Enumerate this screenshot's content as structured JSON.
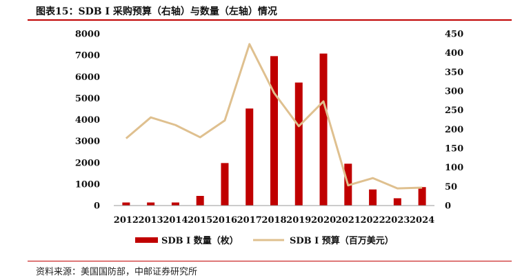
{
  "title": "图表15：SDB I 采购预算（右轴）与数量（左轴）情况",
  "source": "资料来源：美国国防部，中邮证券研究所",
  "colors": {
    "bar": "#c00000",
    "line": "#dfc08f",
    "rule": "#c00000"
  },
  "chart_data": {
    "type": "bar",
    "categories": [
      "2012",
      "2013",
      "2014",
      "2015",
      "2016",
      "2017",
      "2018",
      "2019",
      "2020",
      "2021",
      "2022",
      "2023",
      "2024"
    ],
    "series": [
      {
        "name": "SDB I 数量（枚）",
        "type": "bar",
        "axis": "left",
        "values": [
          144,
          144,
          144,
          450,
          1980,
          4520,
          6960,
          5730,
          7080,
          1950,
          750,
          340,
          860
        ]
      },
      {
        "name": "SDB I 预算（百万美元）",
        "type": "line",
        "axis": "right",
        "values": [
          176,
          231,
          211,
          179,
          223,
          423,
          295,
          208,
          273,
          53,
          72,
          45,
          47
        ]
      }
    ],
    "left_axis": {
      "ylim": [
        0,
        8000
      ],
      "ticks": [
        "0",
        "1000",
        "2000",
        "3000",
        "4000",
        "5000",
        "6000",
        "7000",
        "8000"
      ]
    },
    "right_axis": {
      "ylim": [
        0,
        450
      ],
      "ticks": [
        "0",
        "50",
        "100",
        "150",
        "200",
        "250",
        "300",
        "350",
        "400",
        "450"
      ]
    },
    "legend_position": "bottom",
    "grid": false
  }
}
